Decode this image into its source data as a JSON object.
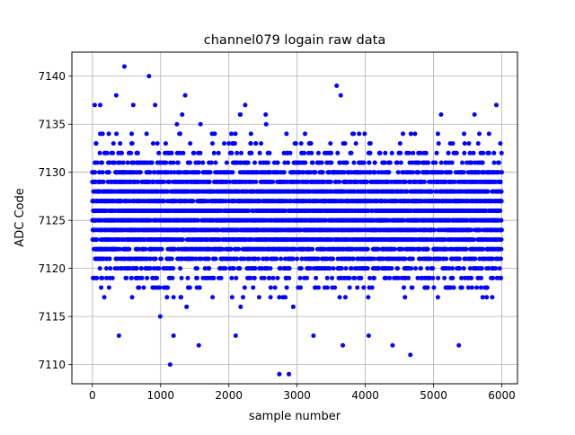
{
  "chart_data": {
    "type": "scatter",
    "title": "channel079 logain raw data",
    "xlabel": "sample number",
    "ylabel": "ADC Code",
    "xlim": [
      -300,
      6230
    ],
    "ylim": [
      7108,
      7142.5
    ],
    "xticks": [
      0,
      1000,
      2000,
      3000,
      4000,
      5000,
      6000
    ],
    "yticks": [
      7110,
      7115,
      7120,
      7125,
      7130,
      7135,
      7140
    ],
    "grid": true,
    "marker_color": "#0000ff",
    "marker": "circle",
    "sample_count": 6000,
    "value_range": [
      7109,
      7141
    ],
    "dense_band": [
      7119,
      7132
    ],
    "outliers": [
      {
        "x": 35,
        "y": 7137
      },
      {
        "x": 115,
        "y": 7137
      },
      {
        "x": 350,
        "y": 7138
      },
      {
        "x": 390,
        "y": 7113
      },
      {
        "x": 470,
        "y": 7141
      },
      {
        "x": 600,
        "y": 7137
      },
      {
        "x": 830,
        "y": 7140
      },
      {
        "x": 920,
        "y": 7137
      },
      {
        "x": 1140,
        "y": 7110
      },
      {
        "x": 1190,
        "y": 7113
      },
      {
        "x": 1360,
        "y": 7138
      },
      {
        "x": 1560,
        "y": 7112
      },
      {
        "x": 2100,
        "y": 7113
      },
      {
        "x": 2170,
        "y": 7136
      },
      {
        "x": 2240,
        "y": 7137
      },
      {
        "x": 2540,
        "y": 7136
      },
      {
        "x": 2740,
        "y": 7109
      },
      {
        "x": 2880,
        "y": 7109
      },
      {
        "x": 3240,
        "y": 7113
      },
      {
        "x": 3580,
        "y": 7139
      },
      {
        "x": 3640,
        "y": 7138
      },
      {
        "x": 3670,
        "y": 7112
      },
      {
        "x": 4050,
        "y": 7113
      },
      {
        "x": 4400,
        "y": 7112
      },
      {
        "x": 4660,
        "y": 7111
      },
      {
        "x": 5110,
        "y": 7136
      },
      {
        "x": 5370,
        "y": 7112
      },
      {
        "x": 5600,
        "y": 7136
      },
      {
        "x": 5920,
        "y": 7137
      }
    ]
  }
}
